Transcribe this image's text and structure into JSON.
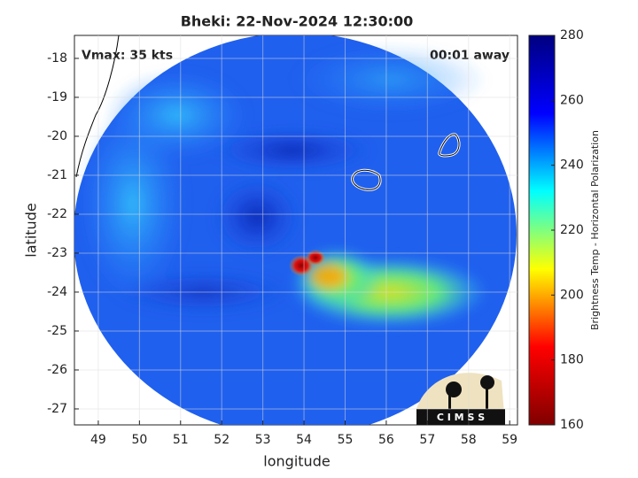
{
  "chart_data": {
    "type": "image",
    "title": "Bheki: 22-Nov-2024 12:30:00",
    "annotations": [
      "Vmax: 35 kts",
      "00:01 away"
    ],
    "xlabel": "longitude",
    "ylabel": "latitude",
    "xlim": [
      48.42,
      59.19
    ],
    "ylim": [
      -27.41,
      -17.41
    ],
    "xticks": [
      49,
      50,
      51,
      52,
      53,
      54,
      55,
      56,
      57,
      58,
      59
    ],
    "yticks": [
      -27,
      -26,
      -25,
      -24,
      -23,
      -22,
      -21,
      -20,
      -19,
      -18
    ],
    "grid": true,
    "colorbar": {
      "label": "Brightness Temp - Horizontal Polarization",
      "clim": [
        160,
        280
      ],
      "ticks": [
        160,
        180,
        200,
        220,
        240,
        260,
        280
      ],
      "colormap": [
        "#800000",
        "#ff0000",
        "#ffff00",
        "#00ffff",
        "#0000ff",
        "#000080"
      ]
    },
    "logo": "C I M S S"
  }
}
